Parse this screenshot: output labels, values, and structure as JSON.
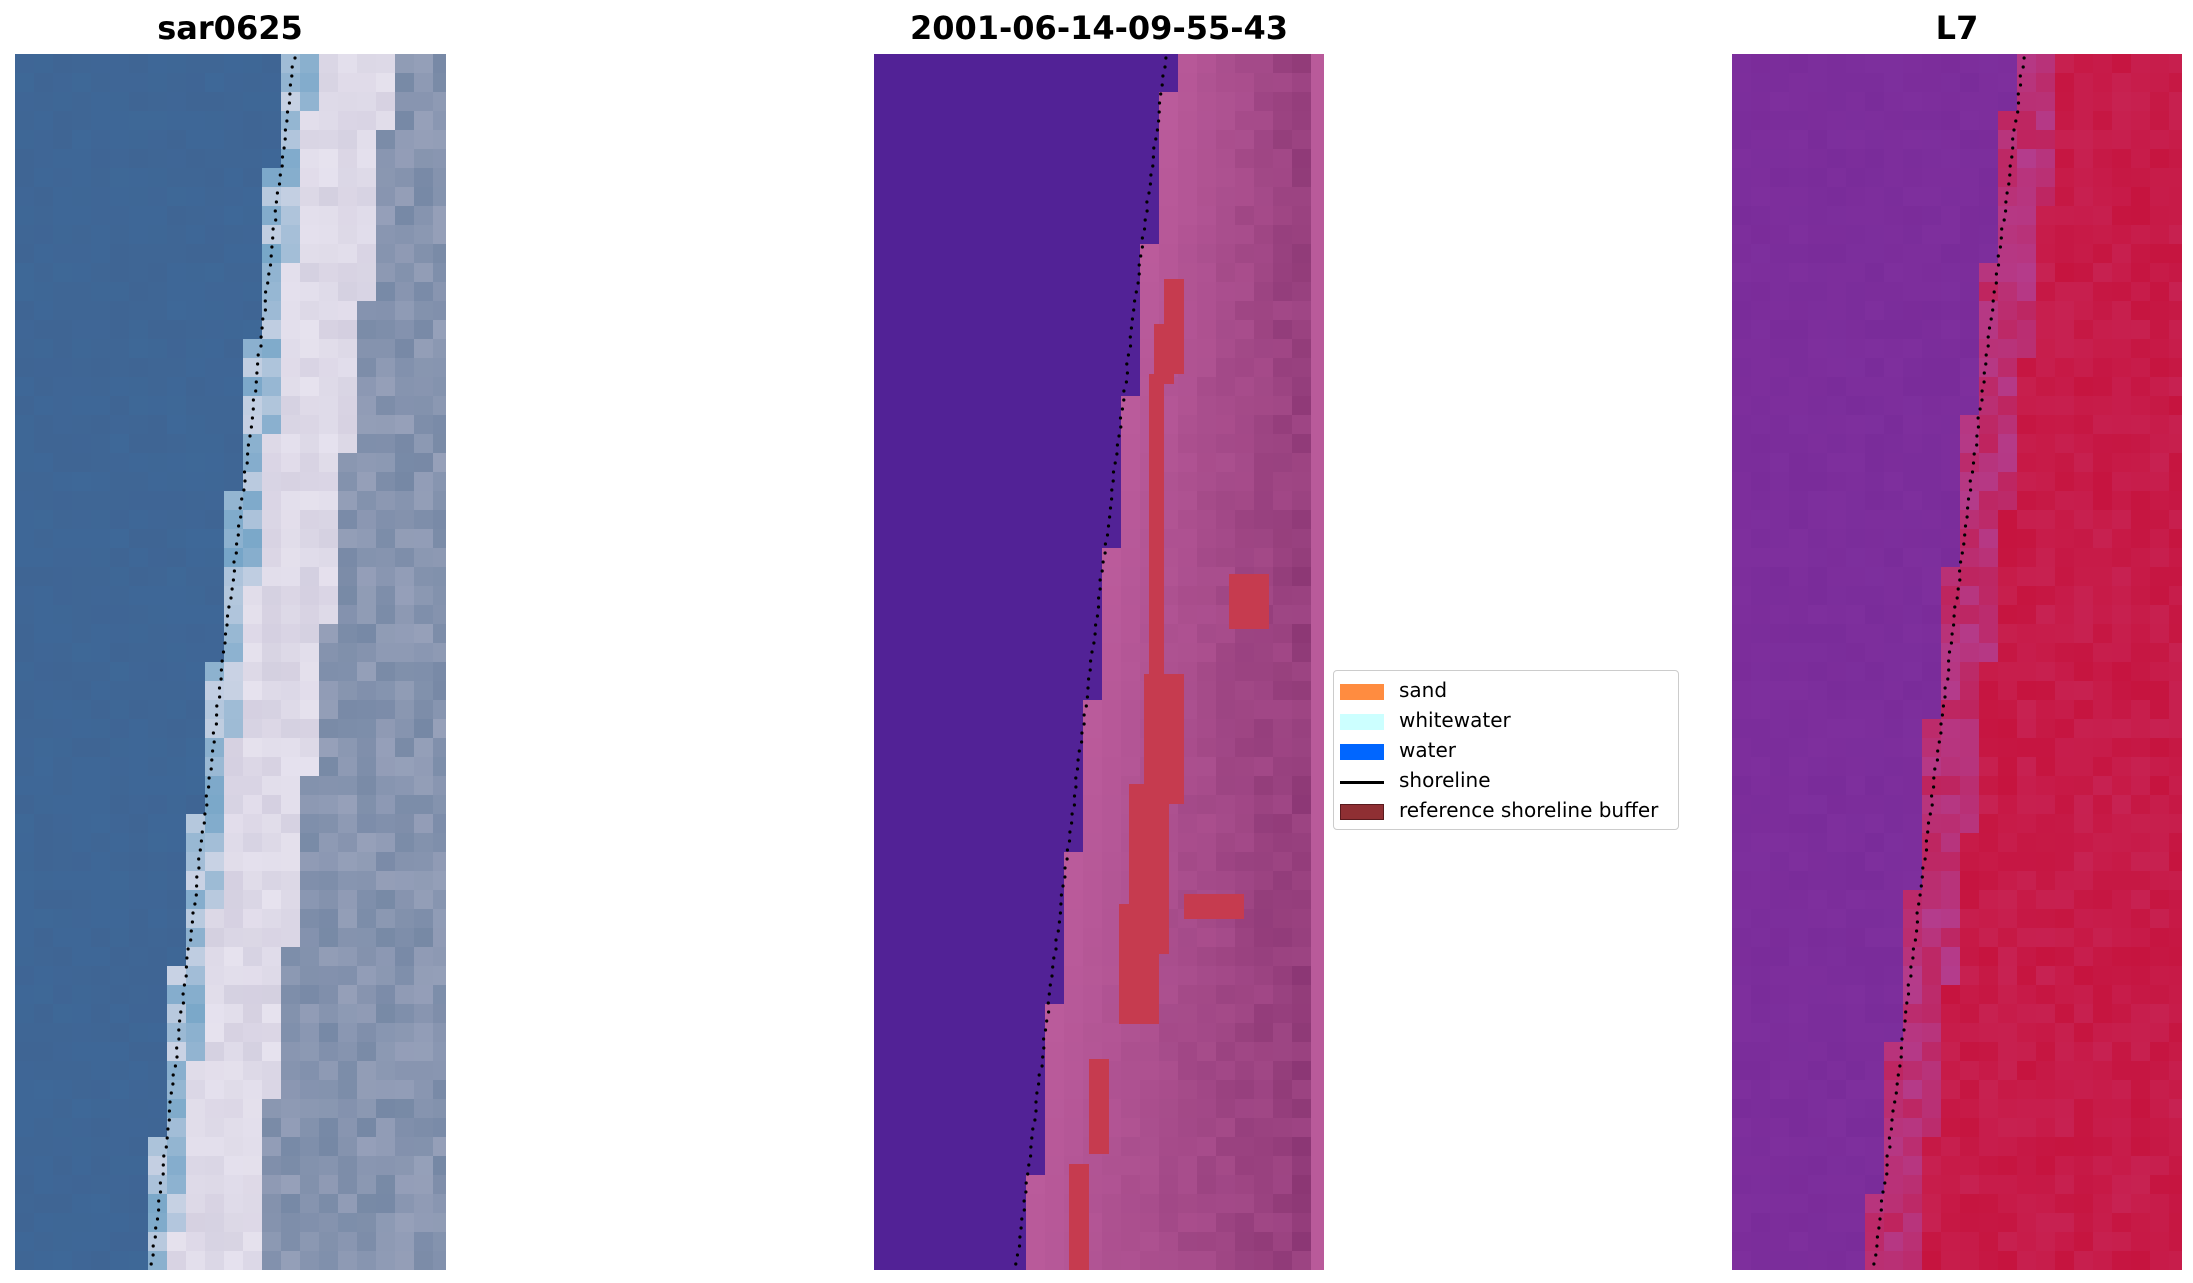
{
  "panels": {
    "rgb": {
      "title": "sar0625"
    },
    "classified": {
      "title": "2001-06-14-09-55-43"
    },
    "index": {
      "title": "L7"
    }
  },
  "legend": {
    "items": [
      {
        "label": "sand",
        "kind": "patch",
        "color": "#ff8c40"
      },
      {
        "label": "whitewater",
        "kind": "patch",
        "color": "#ccffff"
      },
      {
        "label": "water",
        "kind": "patch",
        "color": "#0066ff"
      },
      {
        "label": "shoreline",
        "kind": "line",
        "color": "#000000"
      },
      {
        "label": "reference shoreline buffer",
        "kind": "patch",
        "color": "#8f2f33"
      }
    ]
  },
  "colors": {
    "water_rgb": "#3f6594",
    "beach_rgb": "#e6e2ee",
    "water_class": "#522296",
    "land_class": "#b95a9a",
    "buffer": "#c63b4f",
    "index_low": "#7a2c9a",
    "index_high": "#c6143f"
  }
}
